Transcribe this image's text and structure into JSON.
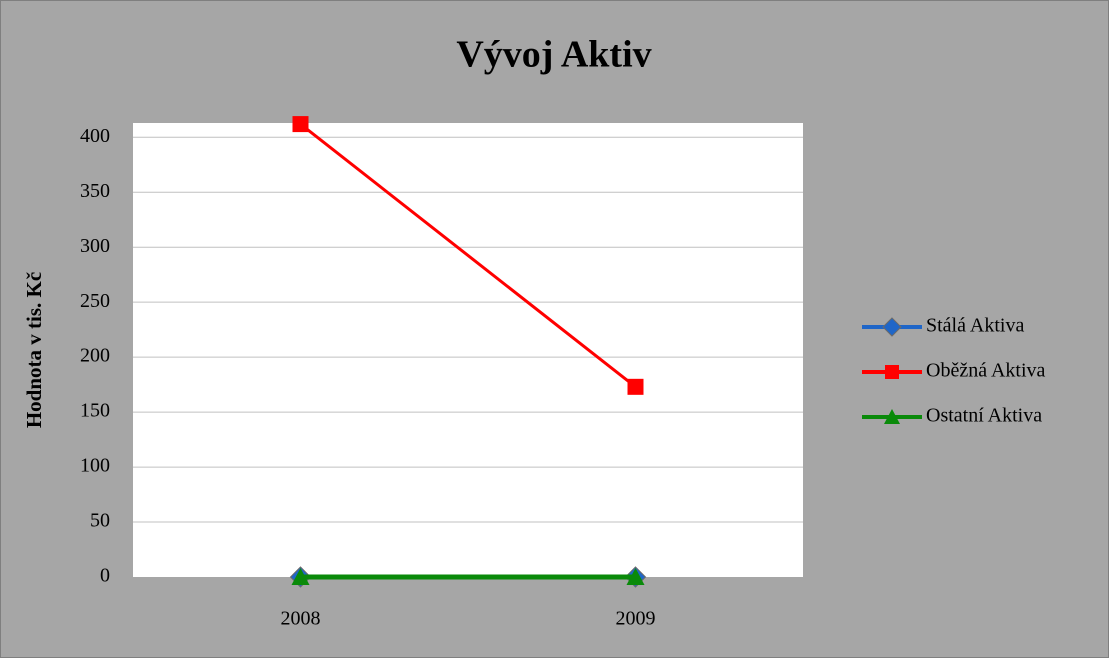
{
  "chart_data": {
    "type": "line",
    "title": "Vývoj  Aktiv",
    "y_label": "Hodnota v tis. Kč",
    "categories": [
      "2008",
      "2009"
    ],
    "series": [
      {
        "name": "Stálá Aktiva",
        "color": "#1f66c8",
        "marker": "diamond",
        "values": [
          0,
          0
        ]
      },
      {
        "name": "Oběžná Aktiva",
        "color": "#ff0000",
        "marker": "square",
        "values": [
          412,
          173
        ]
      },
      {
        "name": "Ostatní Aktiva",
        "color": "#0a8a0a",
        "marker": "triangle",
        "values": [
          0,
          0
        ]
      }
    ],
    "ylim": [
      0,
      413
    ],
    "yticks": [
      0,
      50,
      100,
      150,
      200,
      250,
      300,
      350,
      400
    ],
    "grid": true,
    "legend": "right"
  }
}
